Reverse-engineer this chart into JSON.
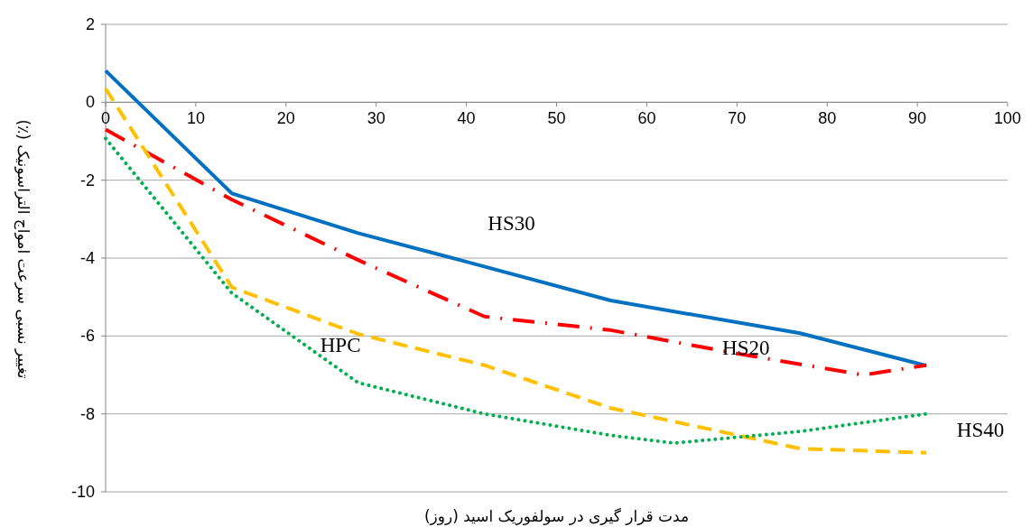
{
  "chart_data": {
    "type": "line",
    "xlabel": "مدت قرار گیری در سولفوریک اسید (روز)",
    "ylabel": "تغییر نسبی سرعت امواج التراسونیک (٪)",
    "xlim": [
      0,
      100
    ],
    "xticks": [
      0,
      10,
      20,
      30,
      40,
      50,
      60,
      70,
      80,
      90,
      100
    ],
    "ylim": [
      -10,
      2
    ],
    "yticks": [
      -10,
      -8,
      -6,
      -4,
      -2,
      0,
      2
    ],
    "grid": "y",
    "legend": false,
    "marker": "none",
    "series": [
      {
        "name": "HS30",
        "color": "#0070c0",
        "line_style": "solid",
        "x": [
          0,
          14,
          28,
          38,
          56,
          77,
          91
        ],
        "values": [
          0.81,
          -2.34,
          -3.36,
          -3.97,
          -5.09,
          -5.93,
          -6.76
        ]
      },
      {
        "name": "HS20",
        "color": "#ff0000",
        "line_style": "dashdot",
        "x": [
          0,
          14,
          28,
          42,
          56,
          70,
          84,
          91
        ],
        "values": [
          -0.7,
          -2.5,
          -4.05,
          -5.5,
          -5.85,
          -6.45,
          -7.0,
          -6.75
        ]
      },
      {
        "name": "HPC",
        "color": "#ffc000",
        "line_style": "dashed",
        "x": [
          0,
          14,
          28,
          42,
          56,
          77,
          91
        ],
        "values": [
          0.35,
          -4.75,
          -5.95,
          -6.75,
          -7.85,
          -8.89,
          -9.0
        ]
      },
      {
        "name": "HS40",
        "color": "#00b050",
        "line_style": "dotted",
        "x": [
          0,
          14,
          28,
          42,
          56,
          63,
          77,
          91
        ],
        "values": [
          -0.93,
          -4.9,
          -7.2,
          -8.0,
          -8.55,
          -8.75,
          -8.45,
          -8.0
        ]
      }
    ]
  }
}
